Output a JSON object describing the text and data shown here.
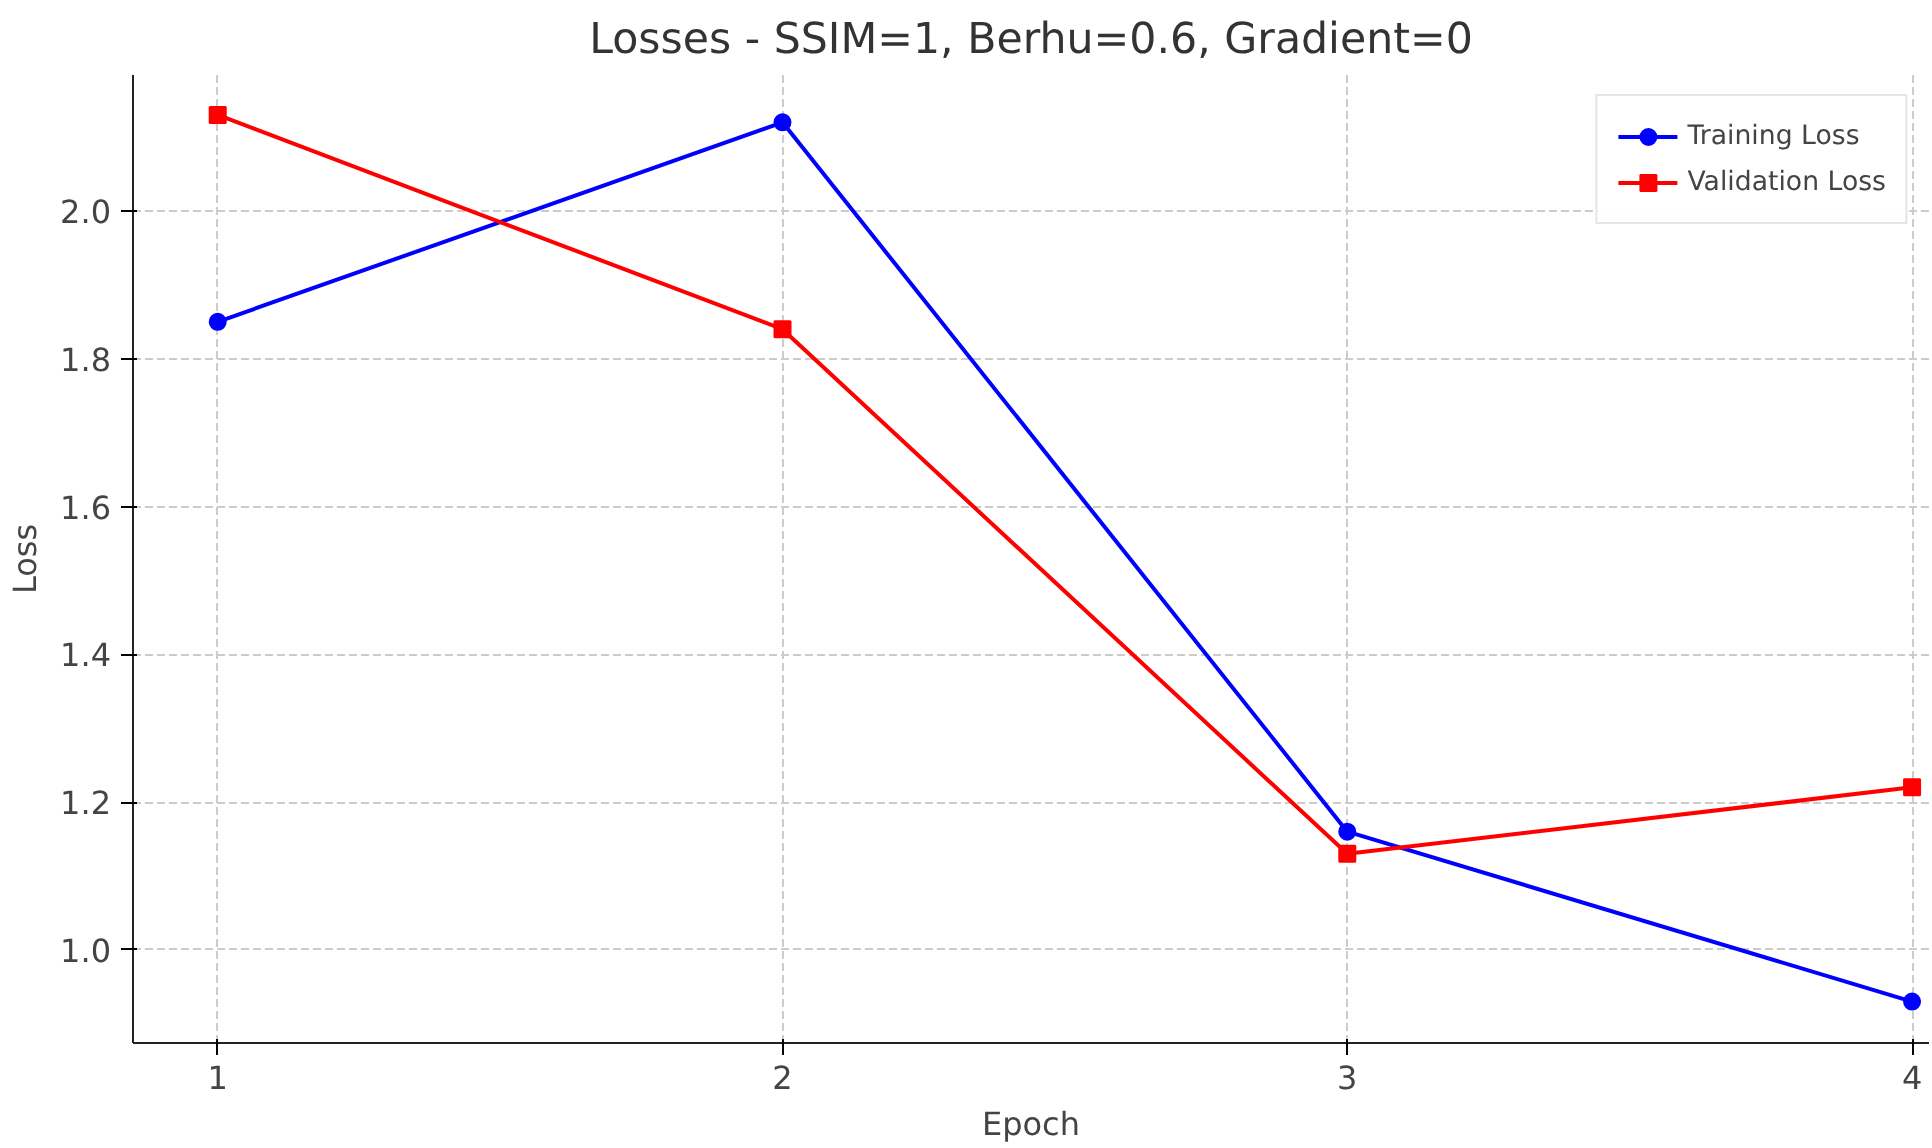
{
  "chart_data": {
    "type": "line",
    "title": "Losses - SSIM=1, Berhu=0.6, Gradient=0",
    "xlabel": "Epoch",
    "ylabel": "Loss",
    "x": [
      1,
      2,
      3,
      4
    ],
    "series": [
      {
        "name": "Training Loss",
        "color": "#0000ff",
        "marker": "circle",
        "values": [
          1.85,
          2.12,
          1.16,
          0.93
        ]
      },
      {
        "name": "Validation Loss",
        "color": "#ff0000",
        "marker": "square",
        "values": [
          2.13,
          1.84,
          1.13,
          1.22
        ]
      }
    ],
    "xlim": [
      0.85,
      4.03
    ],
    "ylim": [
      0.874,
      2.184
    ],
    "xticks": [
      1,
      2,
      3,
      4
    ],
    "yticks": [
      {
        "value": 1.0,
        "label": "1.0"
      },
      {
        "value": 1.2,
        "label": "1.2"
      },
      {
        "value": 1.4,
        "label": "1.4"
      },
      {
        "value": 1.6,
        "label": "1.6"
      },
      {
        "value": 1.8,
        "label": "1.8"
      },
      {
        "value": 2.0,
        "label": "2.0"
      }
    ],
    "grid": true,
    "legend": "top right",
    "line_style": "solid"
  }
}
